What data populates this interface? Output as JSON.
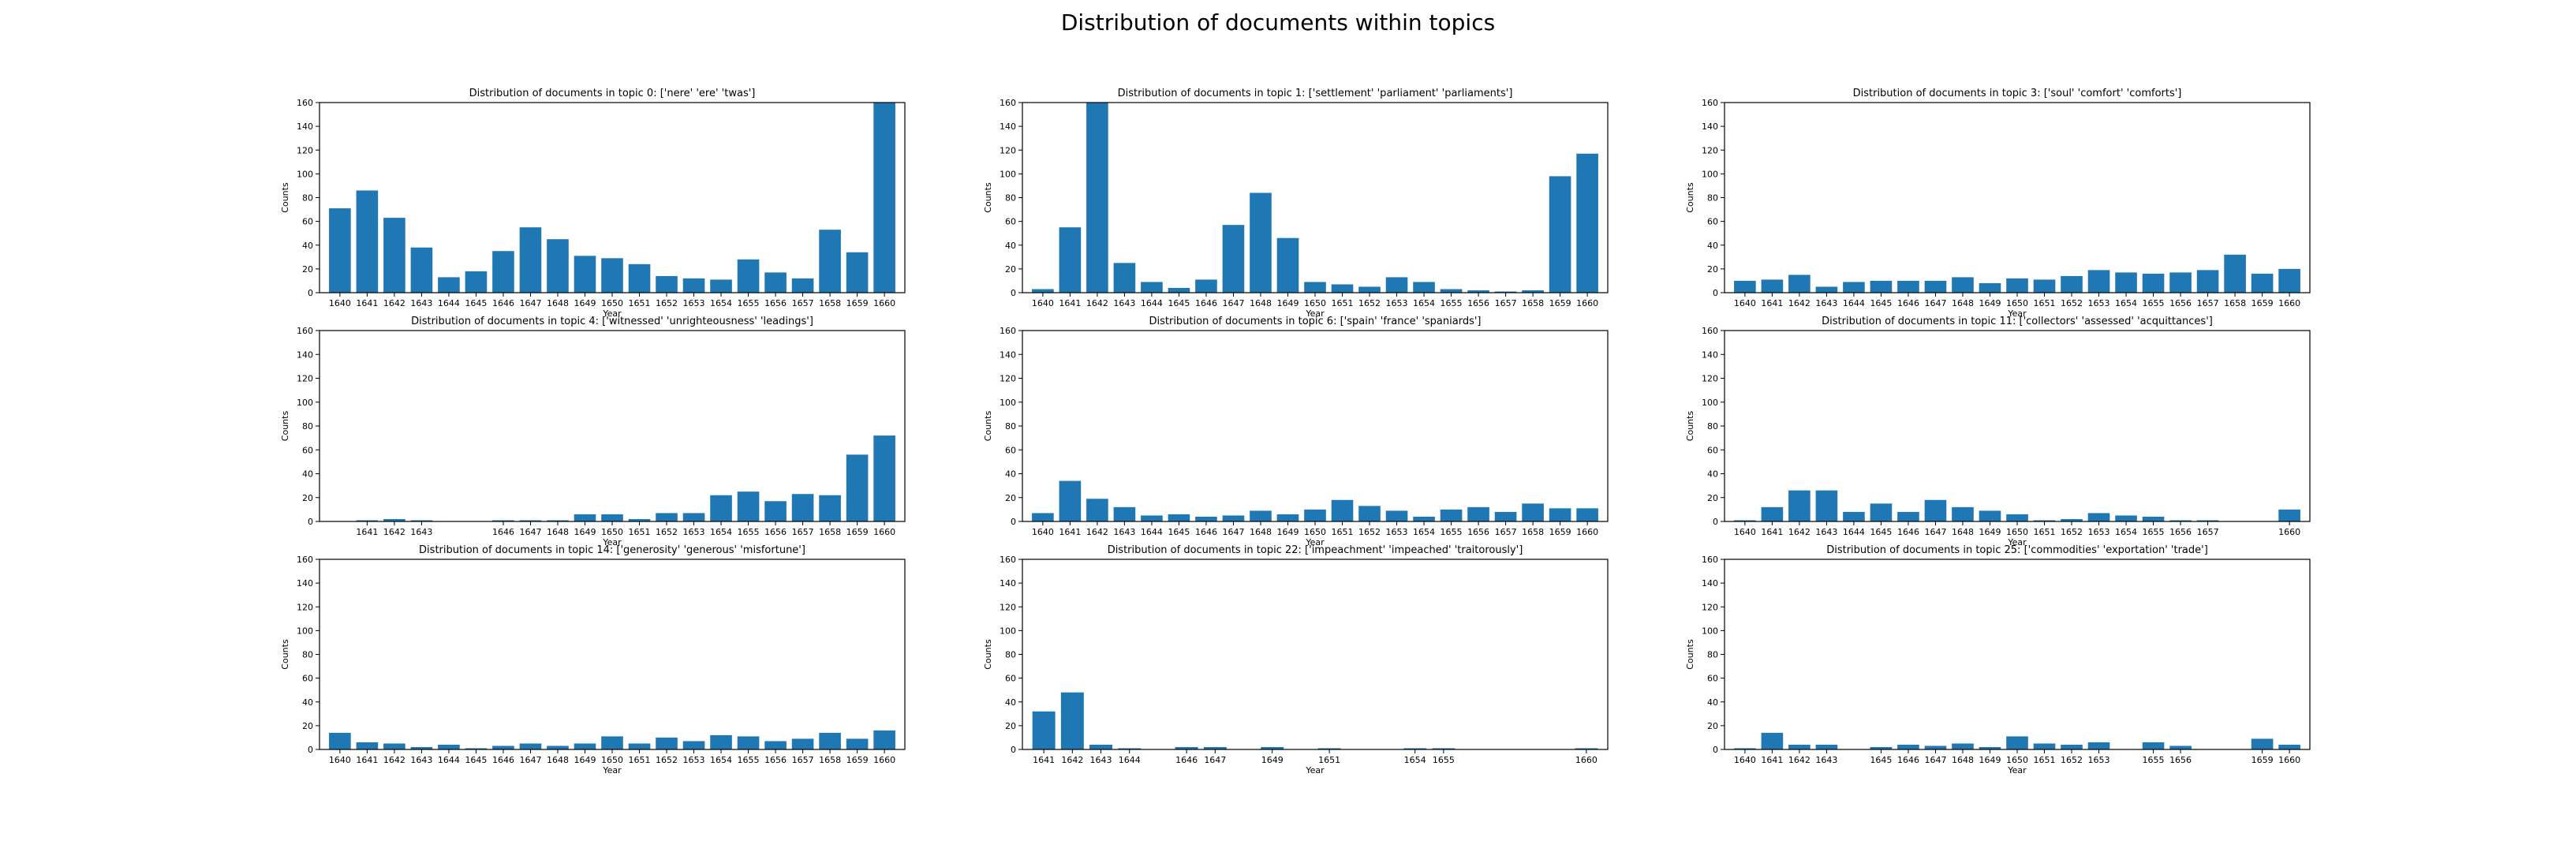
{
  "figure": {
    "title": "Distribution of documents within topics"
  },
  "colors": {
    "bar": "#1f77b4",
    "axis": "#000000"
  },
  "chart_data": [
    {
      "type": "bar",
      "title": "Distribution of documents in topic 0: ['nere' 'ere' 'twas']",
      "xlabel": "Year",
      "ylabel": "Counts",
      "ylim": [
        0,
        160
      ],
      "yticks": [
        0,
        20,
        40,
        60,
        80,
        100,
        120,
        140,
        160
      ],
      "categories": [
        "1640",
        "1641",
        "1642",
        "1643",
        "1644",
        "1645",
        "1646",
        "1647",
        "1648",
        "1649",
        "1650",
        "1651",
        "1652",
        "1653",
        "1654",
        "1655",
        "1656",
        "1657",
        "1658",
        "1659",
        "1660"
      ],
      "values": [
        71,
        86,
        63,
        38,
        13,
        18,
        35,
        55,
        45,
        31,
        29,
        24,
        14,
        12,
        11,
        28,
        17,
        12,
        53,
        34,
        160
      ]
    },
    {
      "type": "bar",
      "title": "Distribution of documents in topic 1: ['settlement' 'parliament' 'parliaments']",
      "xlabel": "Year",
      "ylabel": "Counts",
      "ylim": [
        0,
        160
      ],
      "yticks": [
        0,
        20,
        40,
        60,
        80,
        100,
        120,
        140,
        160
      ],
      "categories": [
        "1640",
        "1641",
        "1642",
        "1643",
        "1644",
        "1645",
        "1646",
        "1647",
        "1648",
        "1649",
        "1650",
        "1651",
        "1652",
        "1653",
        "1654",
        "1655",
        "1656",
        "1657",
        "1658",
        "1659",
        "1660"
      ],
      "values": [
        3,
        55,
        160,
        25,
        9,
        4,
        11,
        57,
        84,
        46,
        9,
        7,
        5,
        13,
        9,
        3,
        2,
        1,
        2,
        98,
        117
      ]
    },
    {
      "type": "bar",
      "title": "Distribution of documents in topic 3: ['soul' 'comfort' 'comforts']",
      "xlabel": "Year",
      "ylabel": "Counts",
      "ylim": [
        0,
        160
      ],
      "yticks": [
        0,
        20,
        40,
        60,
        80,
        100,
        120,
        140,
        160
      ],
      "categories": [
        "1640",
        "1641",
        "1642",
        "1643",
        "1644",
        "1645",
        "1646",
        "1647",
        "1648",
        "1649",
        "1650",
        "1651",
        "1652",
        "1653",
        "1654",
        "1655",
        "1656",
        "1657",
        "1658",
        "1659",
        "1660"
      ],
      "values": [
        10,
        11,
        15,
        5,
        9,
        10,
        10,
        10,
        13,
        8,
        12,
        11,
        14,
        19,
        17,
        16,
        17,
        19,
        32,
        16,
        20
      ]
    },
    {
      "type": "bar",
      "title": "Distribution of documents in topic 4: ['witnessed' 'unrighteousness' 'leadings']",
      "xlabel": "Year",
      "ylabel": "Counts",
      "ylim": [
        0,
        160
      ],
      "yticks": [
        0,
        20,
        40,
        60,
        80,
        100,
        120,
        140,
        160
      ],
      "categories": [
        "1641",
        "1642",
        "1643",
        "1646",
        "1647",
        "1648",
        "1649",
        "1650",
        "1651",
        "1652",
        "1653",
        "1654",
        "1655",
        "1656",
        "1657",
        "1658",
        "1659",
        "1660"
      ],
      "x_positions": [
        1641,
        1642,
        1643,
        1646,
        1647,
        1648,
        1649,
        1650,
        1651,
        1652,
        1653,
        1654,
        1655,
        1656,
        1657,
        1658,
        1659,
        1660
      ],
      "xlim": [
        1639.25,
        1660.75
      ],
      "values": [
        1,
        2,
        1,
        1,
        1,
        1,
        6,
        6,
        2,
        7,
        7,
        22,
        25,
        17,
        23,
        22,
        56,
        72
      ]
    },
    {
      "type": "bar",
      "title": "Distribution of documents in topic 6: ['spain' 'france' 'spaniards']",
      "xlabel": "Year",
      "ylabel": "Counts",
      "ylim": [
        0,
        160
      ],
      "yticks": [
        0,
        20,
        40,
        60,
        80,
        100,
        120,
        140,
        160
      ],
      "categories": [
        "1640",
        "1641",
        "1642",
        "1643",
        "1644",
        "1645",
        "1646",
        "1647",
        "1648",
        "1649",
        "1650",
        "1651",
        "1652",
        "1653",
        "1654",
        "1655",
        "1656",
        "1657",
        "1658",
        "1659",
        "1660"
      ],
      "values": [
        7,
        34,
        19,
        12,
        5,
        6,
        4,
        5,
        9,
        6,
        10,
        18,
        13,
        9,
        4,
        10,
        12,
        8,
        15,
        11,
        11
      ]
    },
    {
      "type": "bar",
      "title": "Distribution of documents in topic 11: ['collectors' 'assessed' 'acquittances']",
      "xlabel": "Year",
      "ylabel": "Counts",
      "ylim": [
        0,
        160
      ],
      "yticks": [
        0,
        20,
        40,
        60,
        80,
        100,
        120,
        140,
        160
      ],
      "categories": [
        "1640",
        "1641",
        "1642",
        "1643",
        "1644",
        "1645",
        "1646",
        "1647",
        "1648",
        "1649",
        "1650",
        "1651",
        "1652",
        "1653",
        "1654",
        "1655",
        "1656",
        "1657",
        "1660"
      ],
      "x_positions": [
        1640,
        1641,
        1642,
        1643,
        1644,
        1645,
        1646,
        1647,
        1648,
        1649,
        1650,
        1651,
        1652,
        1653,
        1654,
        1655,
        1656,
        1657,
        1660
      ],
      "xlim": [
        1639.25,
        1660.75
      ],
      "values": [
        1,
        12,
        26,
        26,
        8,
        15,
        8,
        18,
        12,
        9,
        6,
        1,
        2,
        7,
        5,
        4,
        1,
        1,
        10
      ]
    },
    {
      "type": "bar",
      "title": "Distribution of documents in topic 14: ['generosity' 'generous' 'misfortune']",
      "xlabel": "Year",
      "ylabel": "Counts",
      "ylim": [
        0,
        160
      ],
      "yticks": [
        0,
        20,
        40,
        60,
        80,
        100,
        120,
        140,
        160
      ],
      "categories": [
        "1640",
        "1641",
        "1642",
        "1643",
        "1644",
        "1645",
        "1646",
        "1647",
        "1648",
        "1649",
        "1650",
        "1651",
        "1652",
        "1653",
        "1654",
        "1655",
        "1656",
        "1657",
        "1658",
        "1659",
        "1660"
      ],
      "values": [
        14,
        6,
        5,
        2,
        4,
        1,
        3,
        5,
        3,
        5,
        11,
        5,
        10,
        7,
        12,
        11,
        7,
        9,
        14,
        9,
        16
      ]
    },
    {
      "type": "bar",
      "title": "Distribution of documents in topic 22: ['impeachment' 'impeached' 'traitorously']",
      "xlabel": "Year",
      "ylabel": "Counts",
      "ylim": [
        0,
        160
      ],
      "yticks": [
        0,
        20,
        40,
        60,
        80,
        100,
        120,
        140,
        160
      ],
      "categories": [
        "1641",
        "1642",
        "1643",
        "1644",
        "1646",
        "1647",
        "1649",
        "1651",
        "1654",
        "1655",
        "1660"
      ],
      "x_positions": [
        1641,
        1642,
        1643,
        1644,
        1646,
        1647,
        1649,
        1651,
        1654,
        1655,
        1660
      ],
      "xlim": [
        1640.25,
        1660.75
      ],
      "values": [
        32,
        48,
        4,
        1,
        2,
        2,
        2,
        1,
        1,
        1,
        1
      ]
    },
    {
      "type": "bar",
      "title": "Distribution of documents in topic 25: ['commodities' 'exportation' 'trade']",
      "xlabel": "Year",
      "ylabel": "Counts",
      "ylim": [
        0,
        160
      ],
      "yticks": [
        0,
        20,
        40,
        60,
        80,
        100,
        120,
        140,
        160
      ],
      "categories": [
        "1640",
        "1641",
        "1642",
        "1643",
        "1645",
        "1646",
        "1647",
        "1648",
        "1649",
        "1650",
        "1651",
        "1652",
        "1653",
        "1655",
        "1656",
        "1659",
        "1660"
      ],
      "x_positions": [
        1640,
        1641,
        1642,
        1643,
        1645,
        1646,
        1647,
        1648,
        1649,
        1650,
        1651,
        1652,
        1653,
        1655,
        1656,
        1659,
        1660
      ],
      "xlim": [
        1639.25,
        1660.75
      ],
      "values": [
        1,
        14,
        4,
        4,
        2,
        4,
        3,
        5,
        2,
        11,
        5,
        4,
        6,
        6,
        3,
        9,
        4
      ]
    }
  ]
}
